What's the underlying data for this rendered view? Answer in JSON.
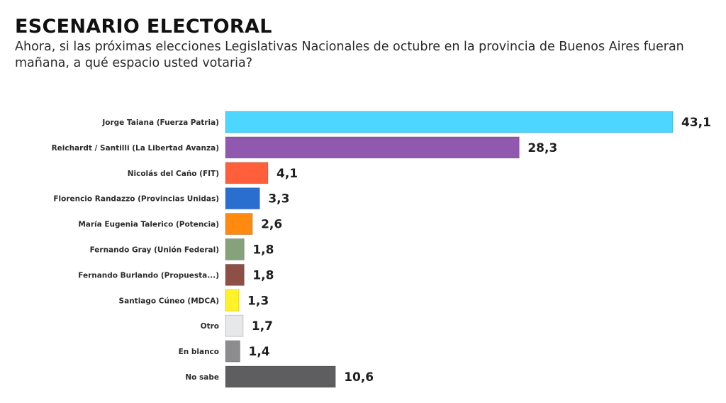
{
  "header": {
    "title": "ESCENARIO ELECTORAL",
    "subtitle": "Ahora, si las próximas elecciones Legislativas Nacionales de octubre en la provincia de Buenos Aires fueran mañana, a qué espacio usted votaria?"
  },
  "chart_data": {
    "type": "bar",
    "orientation": "horizontal",
    "title": "ESCENARIO ELECTORAL",
    "subtitle": "Ahora, si las próximas elecciones Legislativas Nacionales de octubre en la provincia de Buenos Aires fueran mañana, a qué espacio usted votaria?",
    "xlabel": "",
    "ylabel": "",
    "xlim": [
      0,
      43.1
    ],
    "grid": false,
    "legend": "none",
    "categories": [
      "Jorge Taiana (Fuerza Patria)",
      "Reichardt / Santilli (La Libertad Avanza)",
      "Nicolás del Caño (FIT)",
      "Florencio Randazzo (Provincias Unidas)",
      "María Eugenia Talerico (Potencia)",
      "Fernando Gray (Unión Federal)",
      "Fernando Burlando (Propuesta...)",
      "Santiago Cúneo (MDCA)",
      "Otro",
      "En blanco",
      "No sabe"
    ],
    "values": [
      43.1,
      28.3,
      4.1,
      3.3,
      2.6,
      1.8,
      1.8,
      1.3,
      1.7,
      1.4,
      10.6
    ],
    "value_labels": [
      "43,1",
      "28,3",
      "4,1",
      "3,3",
      "2,6",
      "1,8",
      "1,8",
      "1,3",
      "1,7",
      "1,4",
      "10,6"
    ],
    "colors": [
      "#4dd6ff",
      "#9158b0",
      "#ff5f3a",
      "#2a6fcf",
      "#ff8a0f",
      "#85a27a",
      "#8e4f45",
      "#fff229",
      "#e6e8ea",
      "#8c8c8e",
      "#5e5e60"
    ]
  }
}
